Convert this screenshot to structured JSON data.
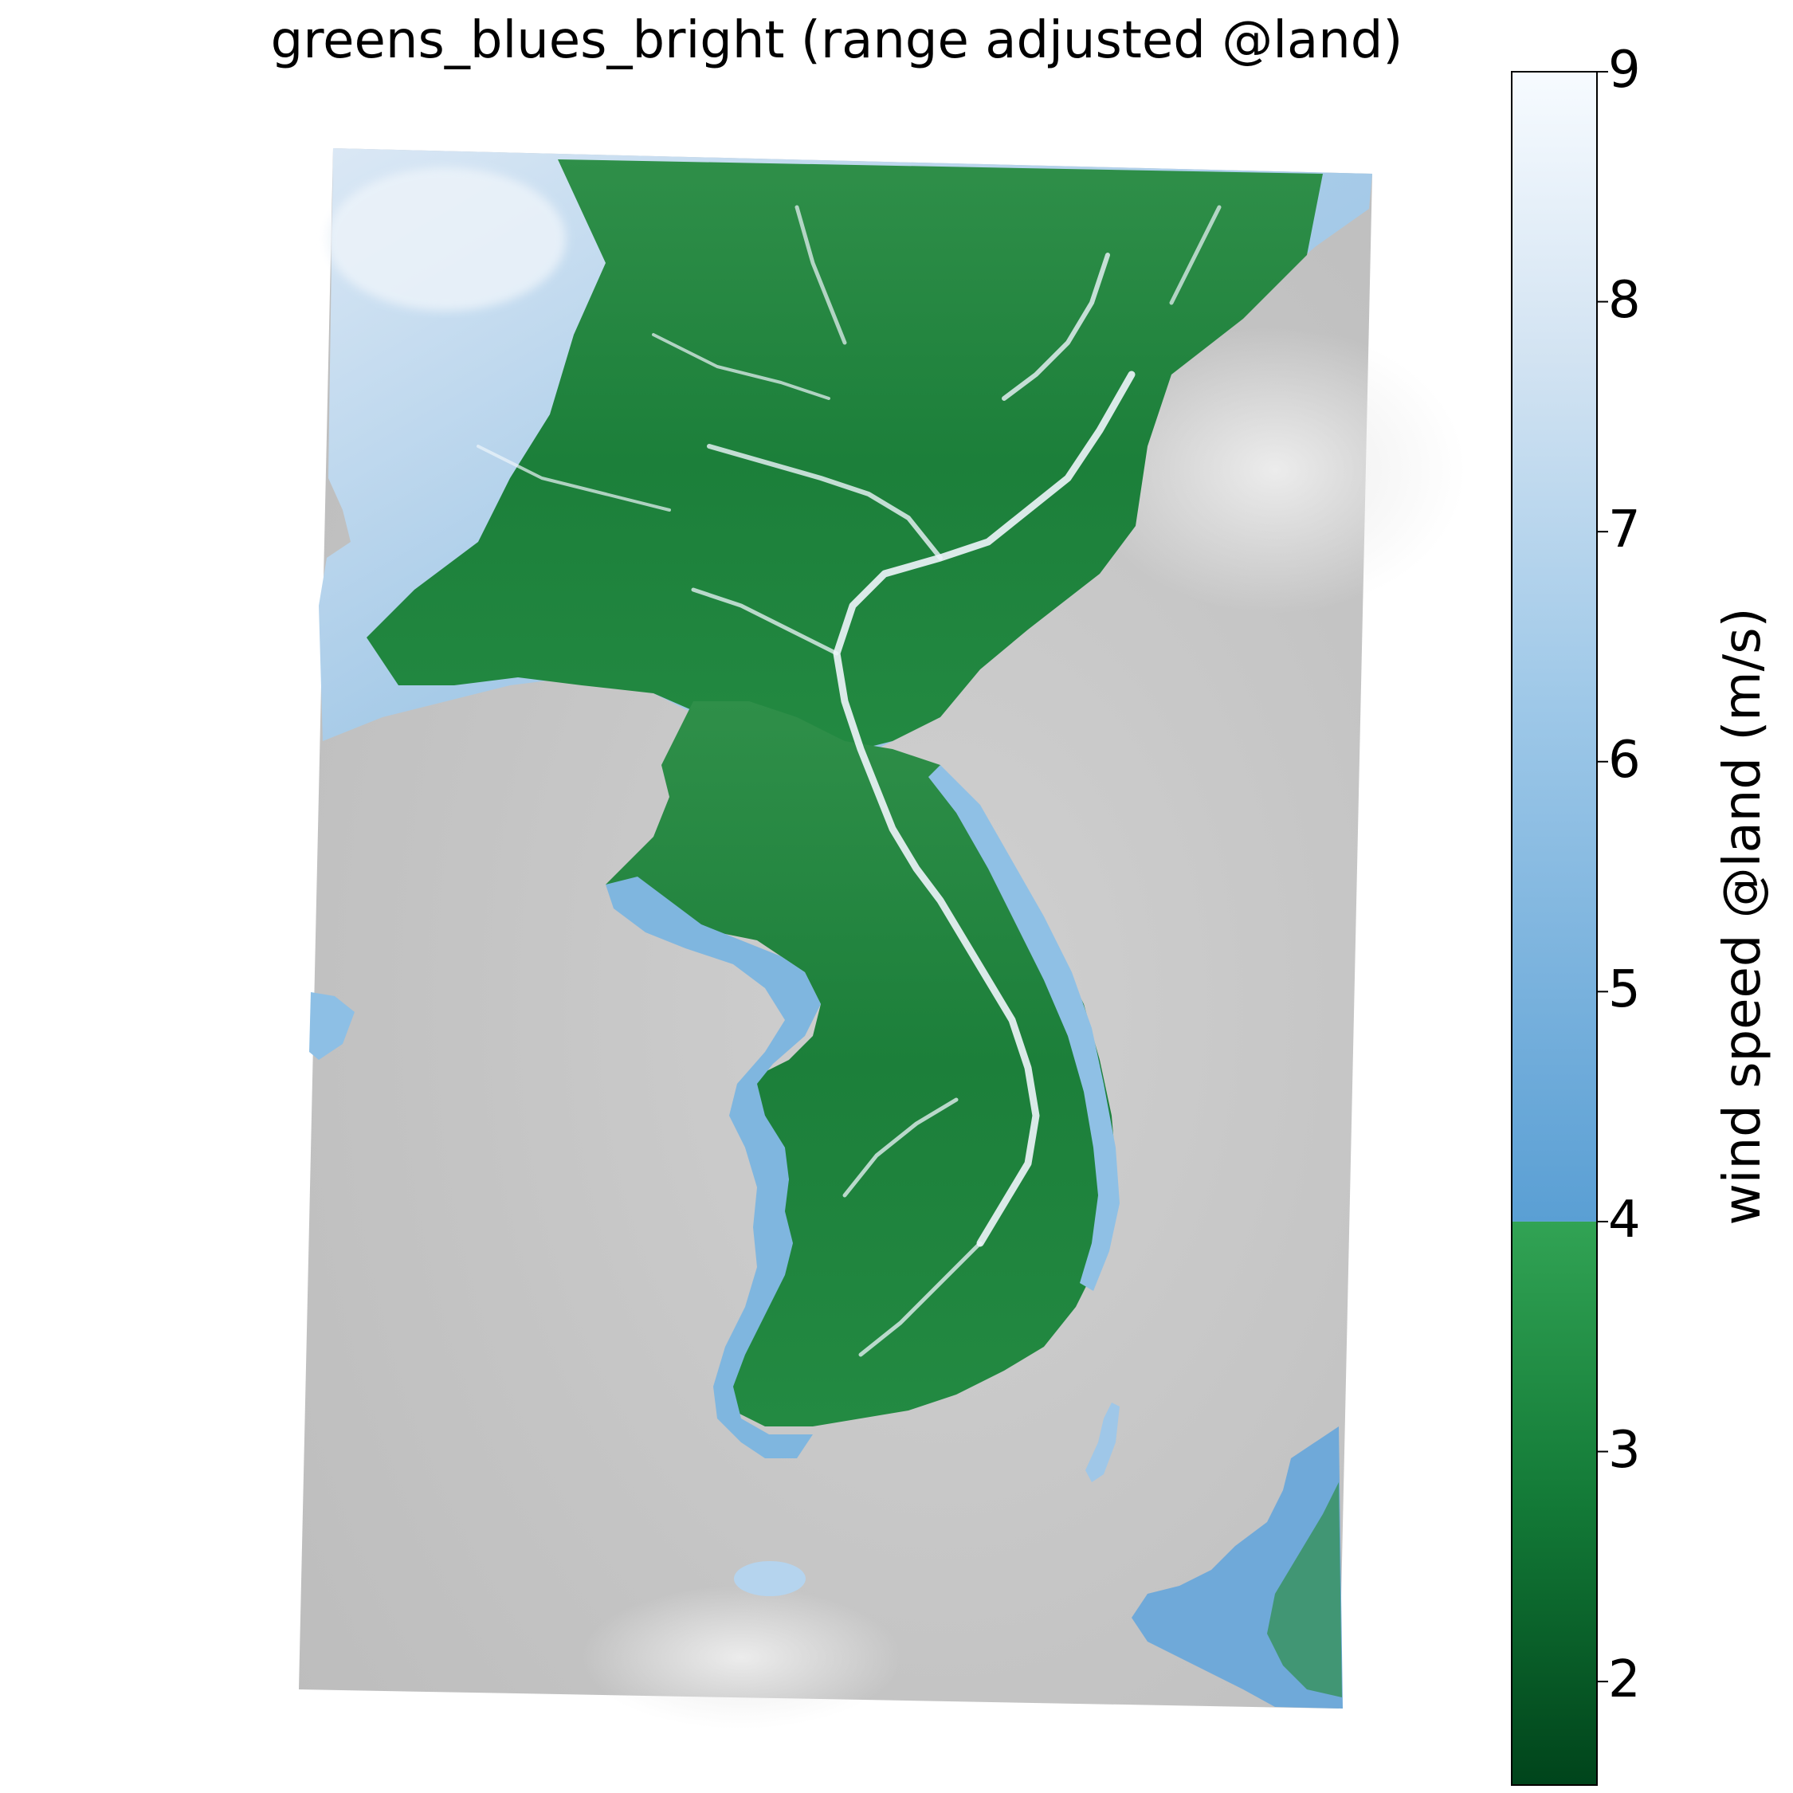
{
  "title": "greens_blues_bright (range adjusted @land)",
  "colorbar": {
    "label": "wind speed @land (m/s)",
    "ticks": [
      "9",
      "8",
      "7",
      "6",
      "5",
      "4",
      "3",
      "2"
    ],
    "range": [
      1.55,
      9
    ],
    "threshold": 4,
    "colors": {
      "green_dark": "#00441b",
      "green_mid": "#1f8a42",
      "green_light": "#31a354",
      "blue_mid": "#5a9fd4",
      "blue_light": "#b8d5ec",
      "white": "#f7fbff",
      "sea_gray": "#c8c8c8"
    }
  },
  "map": {
    "legend_position": "right",
    "regions": [
      "manchuria-plain",
      "korean-peninsula",
      "jeju-island",
      "japan-kyushu",
      "tsushima-island"
    ]
  }
}
